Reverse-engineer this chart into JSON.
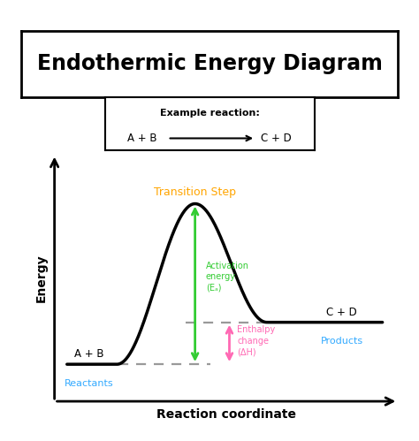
{
  "title": "Endothermic Energy Diagram",
  "title_fontsize": 17,
  "title_fontweight": "bold",
  "example_reaction_label": "Example reaction:",
  "xlabel": "Reaction coordinate",
  "ylabel": "Energy",
  "reactant_label": "A + B",
  "reactant_sublabel": "Reactants",
  "product_label": "C + D",
  "product_sublabel": "Products",
  "transition_label": "Transition Step",
  "activation_label": "Activation\nenergy\n(Eₐ)",
  "enthalpy_label": "Enthalpy\nchange\n(ΔH)",
  "reactant_y": 1.5,
  "product_y": 3.2,
  "peak_y": 8.0,
  "peak_x": 4.5,
  "reactant_x_end": 2.0,
  "product_x_start": 6.8,
  "x_min": 0.0,
  "x_max": 11.0,
  "y_min": 0.0,
  "y_max": 10.0,
  "curve_color": "#000000",
  "dashed_color": "#999999",
  "transition_color": "#FFA500",
  "activation_color": "#33cc33",
  "enthalpy_color": "#FF69B4",
  "reactant_sublabel_color": "#33AAFF",
  "product_sublabel_color": "#33AAFF",
  "background_color": "#ffffff"
}
